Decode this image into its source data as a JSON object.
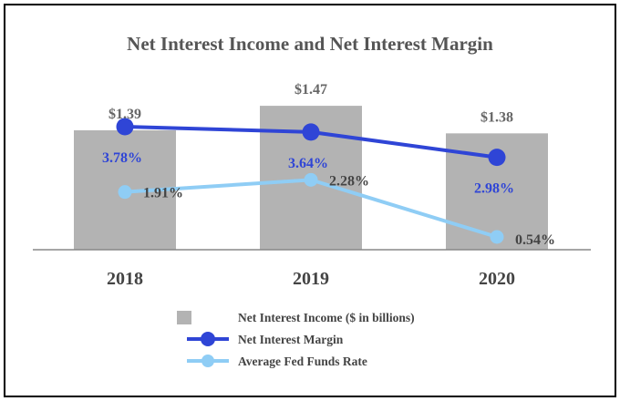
{
  "chart_data": {
    "type": "bar",
    "title": "Net Interest Income and Net Interest Margin",
    "categories": [
      "2018",
      "2019",
      "2020"
    ],
    "series": [
      {
        "name": "Net Interest Income ($ in billions)",
        "kind": "bar",
        "values": [
          1.39,
          1.47,
          1.38
        ],
        "labels": [
          "$1.39",
          "$1.47",
          "$1.38"
        ],
        "color": "#b3b3b3"
      },
      {
        "name": "Net Interest Margin",
        "kind": "line",
        "values": [
          3.78,
          3.64,
          2.98
        ],
        "labels": [
          "3.78%",
          "3.64%",
          "2.98%"
        ],
        "color": "#2f45d6"
      },
      {
        "name": "Average Fed Funds Rate",
        "kind": "line",
        "values": [
          1.91,
          2.28,
          0.54
        ],
        "labels": [
          "1.91%",
          "2.28%",
          "0.54%"
        ],
        "color": "#8fcdf5"
      }
    ],
    "legend": "bottom-center",
    "grid": false
  }
}
